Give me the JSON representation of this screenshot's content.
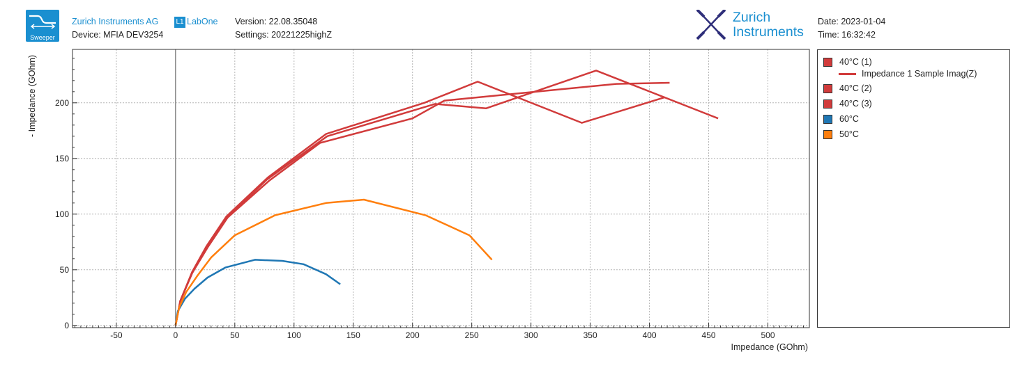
{
  "header": {
    "app_icon": "sweeper-icon",
    "app_label": "Sweeper",
    "company": "Zurich Instruments AG",
    "device": "Device: MFIA DEV3254",
    "labone_box": "L1",
    "labone": "LabOne",
    "version": "Version: 22.08.35048",
    "settings": "Settings: 20221225highZ",
    "brand_line1": "Zurich",
    "brand_line2": "Instruments",
    "brand_icon": "zi-logo-icon",
    "date": "Date: 2023-01-04",
    "time": "Time: 16:32:42",
    "brand_color": "#1a8fd0"
  },
  "legend": {
    "items": [
      {
        "label": "40°C (1)",
        "color": "#d13b3b"
      },
      {
        "label": "40°C (2)",
        "color": "#d13b3b"
      },
      {
        "label": "40°C (3)",
        "color": "#d13b3b"
      },
      {
        "label": "60°C",
        "color": "#1f77b4"
      },
      {
        "label": "50°C",
        "color": "#ff7f0e"
      }
    ],
    "sub_label": "Impedance 1 Sample Imag(Z)",
    "sub_color": "#d13b3b"
  },
  "chart_data": {
    "type": "line",
    "title": "",
    "xlabel": "Impedance (GOhm)",
    "ylabel": "- Impedance (GOhm)",
    "xlim": [
      -87,
      535
    ],
    "ylim": [
      -2,
      248
    ],
    "xticks": [
      -50,
      0,
      50,
      100,
      150,
      200,
      250,
      300,
      350,
      400,
      450,
      500
    ],
    "yticks": [
      0,
      50,
      100,
      150,
      200
    ],
    "grid": true,
    "legend_position": "right",
    "series": [
      {
        "name": "40°C (1)",
        "color": "#d13b3b",
        "x": [
          0,
          4,
          14,
          26,
          43,
          78,
          127,
          210,
          255,
          343,
          413
        ],
        "y": [
          0,
          22,
          48,
          71,
          98,
          133,
          172,
          200,
          219,
          182,
          205
        ]
      },
      {
        "name": "40°C (2)",
        "color": "#d13b3b",
        "x": [
          0,
          4,
          14,
          26,
          43,
          77,
          128,
          219,
          262,
          355,
          458
        ],
        "y": [
          0,
          22,
          47,
          70,
          96,
          131,
          170,
          199,
          195,
          229,
          186
        ]
      },
      {
        "name": "40°C (3)",
        "color": "#d13b3b",
        "x": [
          0,
          4,
          14,
          27,
          44,
          79,
          122,
          200,
          227,
          372,
          417
        ],
        "y": [
          0,
          22,
          47,
          70,
          97,
          130,
          164,
          186,
          202,
          217,
          218
        ]
      },
      {
        "name": "60°C",
        "color": "#1f77b4",
        "x": [
          0,
          2,
          8,
          16,
          27,
          42,
          67,
          90,
          108,
          127,
          139
        ],
        "y": [
          0,
          13,
          24,
          33,
          43,
          52,
          59,
          58,
          55,
          46,
          37
        ]
      },
      {
        "name": "50°C",
        "color": "#ff7f0e",
        "x": [
          0,
          3,
          9,
          18,
          30,
          50,
          84,
          127,
          159,
          211,
          248,
          267
        ],
        "y": [
          0,
          16,
          30,
          44,
          61,
          81,
          99,
          110,
          113,
          99,
          81,
          59
        ]
      }
    ]
  }
}
